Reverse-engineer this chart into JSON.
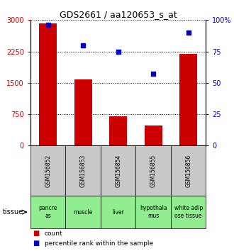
{
  "title": "GDS2661 / aa120653_s_at",
  "categories": [
    "GSM156852",
    "GSM156853",
    "GSM156854",
    "GSM156855",
    "GSM156856"
  ],
  "tissues_display": [
    "pancre\nas",
    "muscle",
    "liver",
    "hypothala\nmus",
    "white adip\nose tissue"
  ],
  "gsm_bg_color": "#c8c8c8",
  "tissue_bg_color": "#90ee90",
  "count_values": [
    2920,
    1590,
    700,
    480,
    2190
  ],
  "percentile_values": [
    96,
    80,
    75,
    57,
    90
  ],
  "count_color": "#cc0000",
  "percentile_color": "#0000cc",
  "ylim_left": [
    0,
    3000
  ],
  "ylim_right": [
    0,
    100
  ],
  "yticks_left": [
    0,
    750,
    1500,
    2250,
    3000
  ],
  "yticks_right": [
    0,
    25,
    50,
    75,
    100
  ],
  "ytick_labels_left": [
    "0",
    "750",
    "1500",
    "2250",
    "3000"
  ],
  "ytick_labels_right": [
    "0",
    "25",
    "50",
    "75",
    "100%"
  ],
  "legend_count": "count",
  "legend_percentile": "percentile rank within the sample",
  "tissue_label": "tissue",
  "bar_width": 0.5,
  "fig_width": 3.3,
  "fig_height": 3.54,
  "dpi": 100
}
